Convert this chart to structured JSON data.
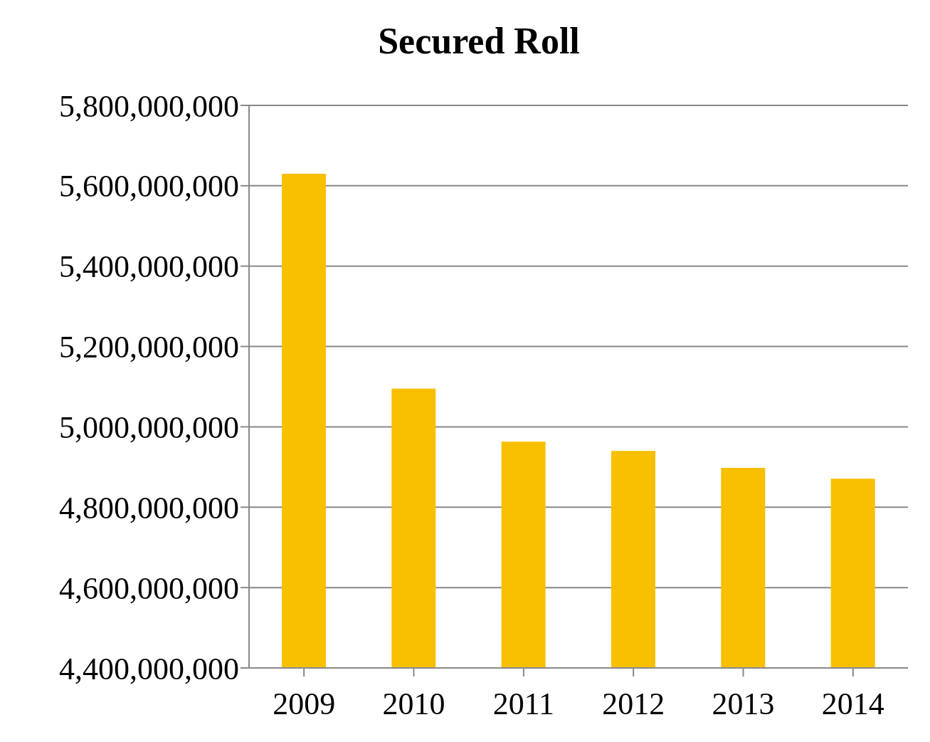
{
  "chart_data": {
    "type": "bar",
    "title": "Secured Roll",
    "categories": [
      "2009",
      "2010",
      "2011",
      "2012",
      "2013",
      "2014"
    ],
    "values": [
      5630000000,
      5095000000,
      4963000000,
      4940000000,
      4898000000,
      4871000000
    ],
    "color": "#f8c000",
    "ylim": [
      4400000000,
      5800000000
    ],
    "yticks": [
      {
        "value": 4400000000,
        "label": "4,400,000,000"
      },
      {
        "value": 4600000000,
        "label": "4,600,000,000"
      },
      {
        "value": 4800000000,
        "label": "4,800,000,000"
      },
      {
        "value": 5000000000,
        "label": "5,000,000,000"
      },
      {
        "value": 5200000000,
        "label": "5,200,000,000"
      },
      {
        "value": 5400000000,
        "label": "5,400,000,000"
      },
      {
        "value": 5600000000,
        "label": "5,600,000,000"
      },
      {
        "value": 5800000000,
        "label": "5,800,000,000"
      }
    ],
    "grid": "y"
  }
}
